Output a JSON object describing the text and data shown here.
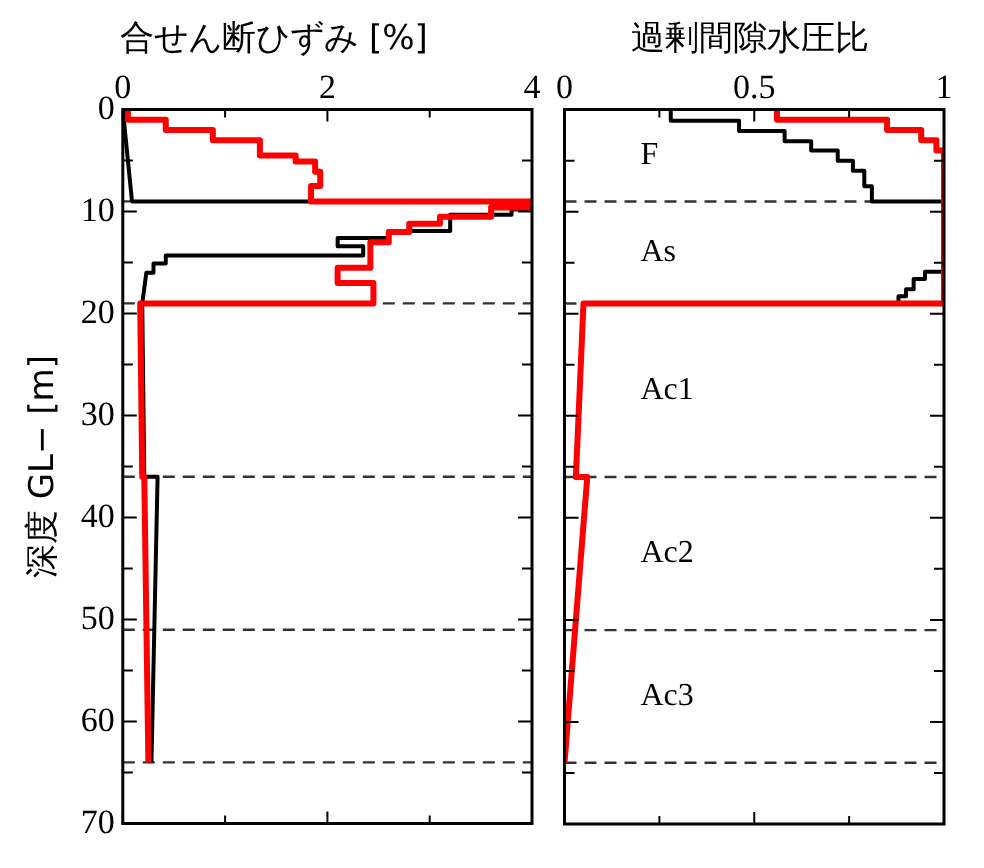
{
  "chart_data": [
    {
      "type": "line",
      "title": "合せん断ひずみ [%]",
      "ylabel": "深度 GL− [m]",
      "xlim": [
        0,
        4
      ],
      "xticks": [
        0,
        {
          "value": 1,
          "label": null
        },
        2,
        {
          "value": 3,
          "label": null
        },
        4
      ],
      "ylim": [
        70,
        0
      ],
      "yticks": [
        0,
        {
          "value": 5,
          "label": null
        },
        10,
        {
          "value": 15,
          "label": null
        },
        20,
        {
          "value": 25,
          "label": null
        },
        30,
        {
          "value": 35,
          "label": null
        },
        40,
        {
          "value": 45,
          "label": null
        },
        50,
        {
          "value": 55,
          "label": null
        },
        60,
        {
          "value": 65,
          "label": null
        },
        70
      ],
      "grid": false,
      "legend": false,
      "marker": "none",
      "line_style": "solid",
      "ref_lines": [
        {
          "axis": "y",
          "value": 9,
          "line_style": "dashed"
        },
        {
          "axis": "y",
          "value": 19,
          "line_style": "dashed"
        },
        {
          "axis": "y",
          "value": 36,
          "line_style": "dashed"
        },
        {
          "axis": "y",
          "value": 51,
          "line_style": "dashed"
        },
        {
          "axis": "y",
          "value": 64,
          "line_style": "dashed"
        }
      ],
      "series": [
        {
          "color": "#000000",
          "x": [
            0,
            0.09,
            3.95,
            3.95,
            3.8,
            3.8,
            3.2,
            3.2,
            2.6,
            2.6,
            2.1,
            2.1,
            2.35,
            2.35,
            0.42,
            0.42,
            0.3,
            0.3,
            0.23,
            0.19,
            0.21,
            0.34,
            0.28
          ],
          "values": [
            0,
            9,
            9,
            9.8,
            9.8,
            10.3,
            10.3,
            11.9,
            11.9,
            12.6,
            12.6,
            13.4,
            13.4,
            14.3,
            14.3,
            15.1,
            15.1,
            16,
            16,
            19,
            36,
            36,
            64
          ]
        },
        {
          "color": "#ff0000",
          "x": [
            0.05,
            0.05,
            0.42,
            0.42,
            0.88,
            0.88,
            1.34,
            1.34,
            1.69,
            1.69,
            1.88,
            1.88,
            1.93,
            1.93,
            1.84,
            1.84,
            4,
            4,
            3.6,
            3.6,
            3.1,
            3.1,
            2.8,
            2.8,
            2.6,
            2.6,
            2.42,
            2.42,
            2.1,
            2.1,
            2.45,
            2.45,
            0.17,
            0.19,
            0.21,
            0.25
          ],
          "values": [
            0,
            1,
            1,
            2,
            2,
            3,
            3,
            4.5,
            4.5,
            5.1,
            5.1,
            6.1,
            6.1,
            7.5,
            7.5,
            9,
            9,
            9.6,
            9.6,
            10.5,
            10.5,
            11.2,
            11.2,
            12,
            12,
            13,
            13,
            15.5,
            15.5,
            17,
            17,
            19,
            19,
            36,
            36,
            64
          ]
        }
      ]
    },
    {
      "type": "line",
      "title": "過剰間隙水圧比",
      "xlim": [
        0,
        1
      ],
      "xticks": [
        0,
        {
          "value": 0.25,
          "label": null
        },
        0.5,
        {
          "value": 0.75,
          "label": null
        },
        1
      ],
      "ylim": [
        70,
        0
      ],
      "yticks": [
        0,
        {
          "value": 5,
          "label": null
        },
        10,
        {
          "value": 15,
          "label": null
        },
        20,
        {
          "value": 25,
          "label": null
        },
        30,
        {
          "value": 35,
          "label": null
        },
        40,
        {
          "value": 45,
          "label": null
        },
        50,
        {
          "value": 55,
          "label": null
        },
        60,
        {
          "value": 65,
          "label": null
        },
        70
      ],
      "tick_labels": "x",
      "grid": false,
      "legend": false,
      "marker": "none",
      "line_style": "solid",
      "ref_lines": [
        {
          "axis": "y",
          "value": 9,
          "line_style": "dashed"
        },
        {
          "axis": "y",
          "value": 19,
          "line_style": "dashed"
        },
        {
          "axis": "y",
          "value": 36,
          "line_style": "dashed"
        },
        {
          "axis": "y",
          "value": 51,
          "line_style": "dashed"
        },
        {
          "axis": "y",
          "value": 64,
          "line_style": "dashed"
        }
      ],
      "annotations": [
        "F",
        "As",
        "Ac1",
        "Ac2",
        "Ac3"
      ],
      "series": [
        {
          "color": "#000000",
          "x": [
            0.28,
            0.28,
            0.46,
            0.46,
            0.58,
            0.58,
            0.65,
            0.65,
            0.72,
            0.72,
            0.76,
            0.76,
            0.79,
            0.79,
            0.81,
            0.81,
            1,
            1,
            0.95,
            0.95,
            0.92,
            0.92,
            0.9,
            0.9,
            0.88,
            0.88
          ],
          "values": [
            0,
            1.1,
            1.1,
            2.1,
            2.1,
            3.1,
            3.1,
            4,
            4,
            5,
            5,
            6,
            6,
            7.5,
            7.5,
            9,
            9,
            15.9,
            15.9,
            16.6,
            16.6,
            17.6,
            17.6,
            18.3,
            18.3,
            19
          ]
        },
        {
          "color": "#ff0000",
          "x": [
            0.56,
            0.56,
            0.85,
            0.85,
            0.94,
            0.94,
            0.98,
            0.98,
            1,
            1,
            0.05,
            0.03,
            0.06,
            0
          ],
          "values": [
            0,
            1,
            1,
            2,
            2,
            3,
            3,
            4,
            4,
            19,
            19,
            36,
            36,
            64
          ]
        }
      ]
    }
  ]
}
